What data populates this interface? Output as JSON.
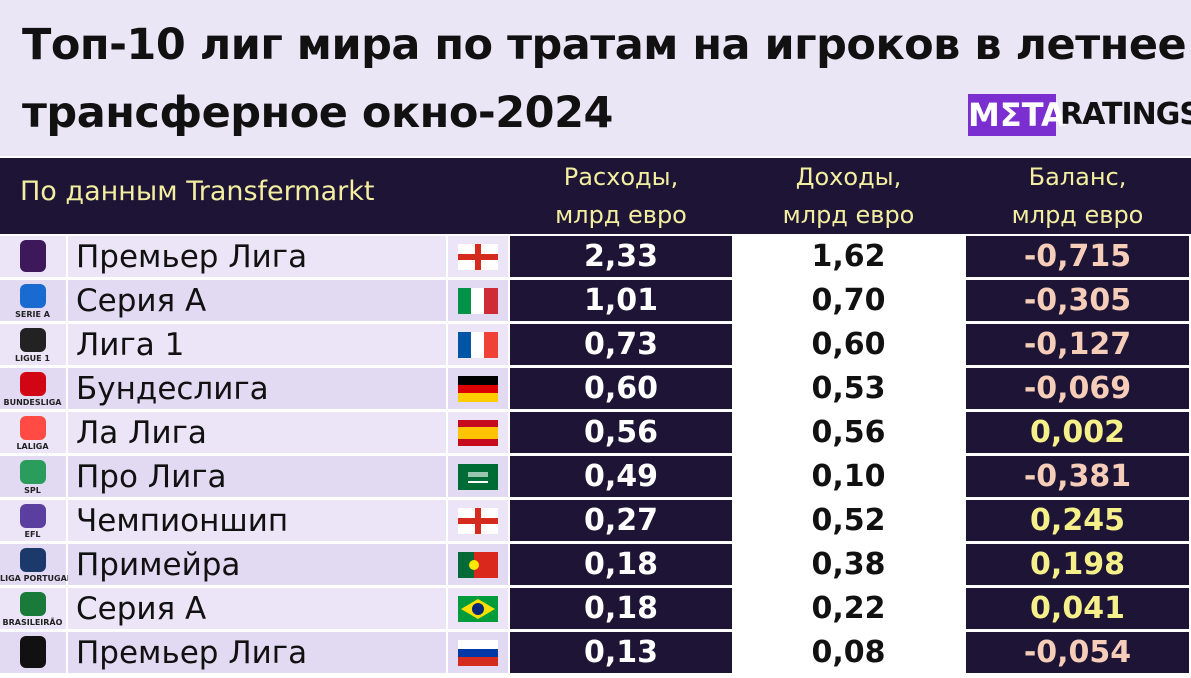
{
  "header": {
    "title_lines": [
      "Топ-10 лиг мира по тратам на игроков в летнее",
      "трансферное окно-2024"
    ],
    "logo": {
      "left": "MΣTA",
      "right": "RATINGS"
    }
  },
  "table": {
    "source": "По данным Transfermarkt",
    "columns": [
      "Расходы, млрд евро",
      "Доходы, млрд евро",
      "Баланс, млрд евро"
    ],
    "rows": [
      {
        "logo_text": null,
        "league": "Премьер Лига",
        "spend": "2,33",
        "income": "1,62",
        "balance": "-0,715"
      },
      {
        "logo_text": "SERIE A",
        "league": "Серия А",
        "spend": "1,01",
        "income": "0,70",
        "balance": "-0,305"
      },
      {
        "logo_text": "LIGUE 1",
        "league": "Лига 1",
        "spend": "0,73",
        "income": "0,60",
        "balance": "-0,127"
      },
      {
        "logo_text": "BUNDESLIGA",
        "league": "Бундеслига",
        "spend": "0,60",
        "income": "0,53",
        "balance": "-0,069"
      },
      {
        "logo_text": "LALIGA",
        "league": "Ла Лига",
        "spend": "0,56",
        "income": "0,56",
        "balance": "0,002"
      },
      {
        "logo_text": "SPL",
        "league": "Про Лига",
        "spend": "0,49",
        "income": "0,10",
        "balance": "-0,381"
      },
      {
        "logo_text": "EFL",
        "league": "Чемпионшип",
        "spend": "0,27",
        "income": "0,52",
        "balance": "0,245"
      },
      {
        "logo_text": "LIGA PORTUGAL",
        "league": "Примейра",
        "spend": "0,18",
        "income": "0,38",
        "balance": "0,198"
      },
      {
        "logo_text": "BRASILEIRÃO",
        "league": "Серия А",
        "spend": "0,18",
        "income": "0,22",
        "balance": "0,041"
      },
      {
        "logo_text": null,
        "league": "Премьер Лига",
        "spend": "0,13",
        "income": "0,08",
        "balance": "-0,054"
      }
    ]
  }
}
